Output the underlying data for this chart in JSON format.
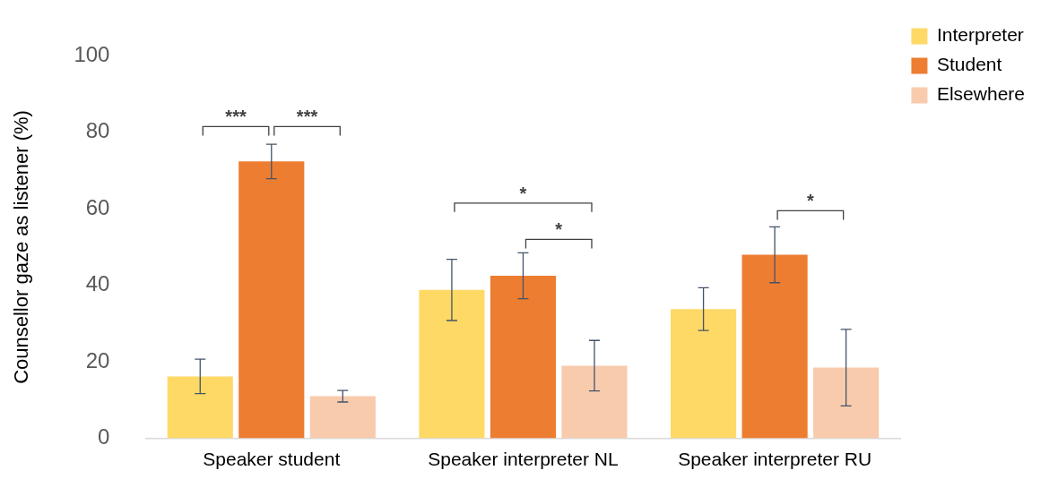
{
  "chart_data": {
    "type": "bar",
    "categories": [
      "Speaker student",
      "Speaker interpreter NL",
      "Speaker interpreter RU"
    ],
    "series": [
      {
        "name": "Interpreter",
        "color": "#ffd966",
        "values": [
          16.2,
          38.8,
          33.8
        ],
        "errors": [
          4.5,
          8,
          5.6
        ]
      },
      {
        "name": "Student",
        "color": "#ed7d31",
        "values": [
          72.4,
          42.5,
          48
        ],
        "errors": [
          4.5,
          6,
          7.3
        ]
      },
      {
        "name": "Elsewhere",
        "color": "#f8cbad",
        "values": [
          11,
          19,
          18.5
        ],
        "errors": [
          1.5,
          6.6,
          10
        ]
      }
    ],
    "ylabel": "Counsellor gaze as listener (%)",
    "ylim": [
      0,
      100
    ],
    "yticks": [
      0,
      20,
      40,
      60,
      80,
      100
    ],
    "grid": false,
    "legend": "top right",
    "annotations": [
      "***",
      "***",
      "*",
      "*",
      "*"
    ]
  }
}
